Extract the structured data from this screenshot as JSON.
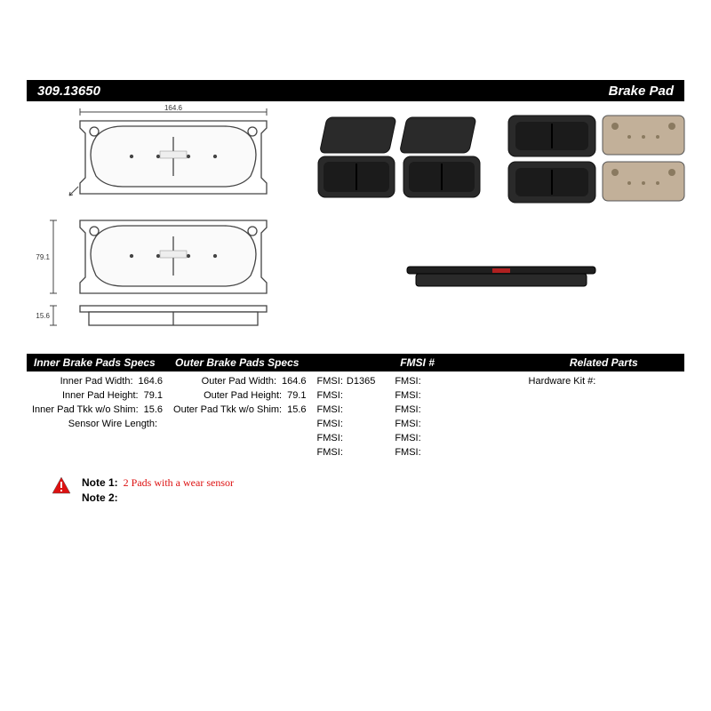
{
  "title": {
    "part_number": "309.13650",
    "product": "Brake Pad"
  },
  "diagram": {
    "width_label": "164.6",
    "height_label": "79.1",
    "thickness_label": "15.6",
    "line_color": "#444",
    "fill_color": "#f8f8f8",
    "dim_font_size": 8
  },
  "photos": {
    "dark_fill": "#2a2a2a",
    "shim_fill": "#c2b099",
    "stroke": "#111"
  },
  "specs": {
    "inner": {
      "header": "Inner Brake Pads Specs",
      "rows": [
        {
          "label": "Inner Pad Width:",
          "value": "164.6"
        },
        {
          "label": "Inner Pad Height:",
          "value": "79.1"
        },
        {
          "label": "Inner Pad Tkk w/o Shim:",
          "value": "15.6"
        },
        {
          "label": "Sensor Wire Length:",
          "value": ""
        }
      ]
    },
    "outer": {
      "header": "Outer Brake Pads Specs",
      "rows": [
        {
          "label": "Outer Pad Width:",
          "value": "164.6"
        },
        {
          "label": "Outer Pad Height:",
          "value": "79.1"
        },
        {
          "label": "Outer Pad Tkk w/o Shim:",
          "value": "15.6"
        }
      ]
    },
    "fmsi": {
      "header": "FMSI #",
      "left": [
        {
          "label": "FMSI:",
          "value": "D1365"
        },
        {
          "label": "FMSI:",
          "value": ""
        },
        {
          "label": "FMSI:",
          "value": ""
        },
        {
          "label": "FMSI:",
          "value": ""
        },
        {
          "label": "FMSI:",
          "value": ""
        },
        {
          "label": "FMSI:",
          "value": ""
        }
      ],
      "right": [
        {
          "label": "FMSI:",
          "value": ""
        },
        {
          "label": "FMSI:",
          "value": ""
        },
        {
          "label": "FMSI:",
          "value": ""
        },
        {
          "label": "FMSI:",
          "value": ""
        },
        {
          "label": "FMSI:",
          "value": ""
        },
        {
          "label": "FMSI:",
          "value": ""
        }
      ]
    },
    "related": {
      "header": "Related Parts",
      "rows": [
        {
          "label": "Hardware Kit #:",
          "value": ""
        }
      ]
    }
  },
  "notes": {
    "note1_key": "Note 1:",
    "note1_val": "2 Pads with a wear sensor",
    "note2_key": "Note 2:",
    "note2_val": "",
    "warn_fill": "#d11",
    "warn_stroke": "#000"
  },
  "colors": {
    "header_bg": "#000000",
    "header_fg": "#ffffff",
    "text": "#000000"
  }
}
